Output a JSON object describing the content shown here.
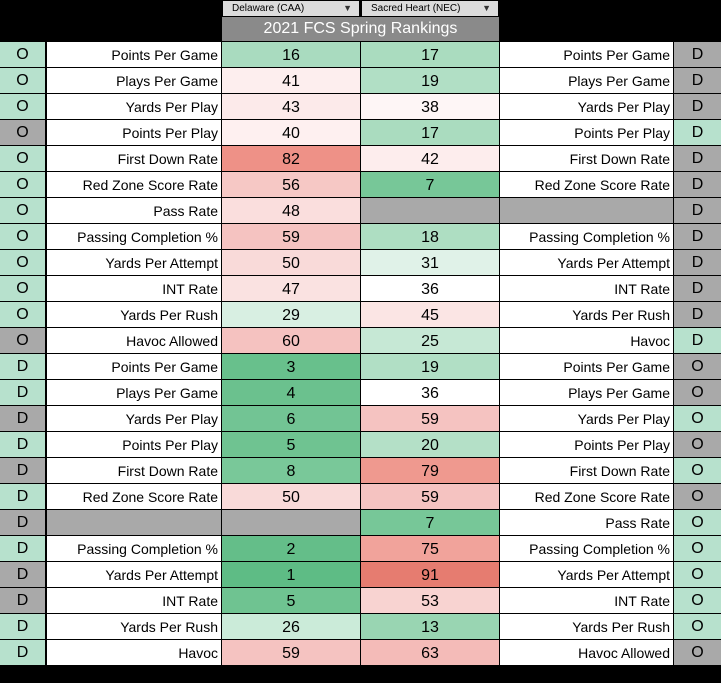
{
  "header": {
    "team1": "Delaware (CAA)",
    "team2": "Sacred Heart (NEC)",
    "title": "2021 FCS Spring Rankings"
  },
  "colors": {
    "side_green": "#b7e1cd",
    "side_gray": "#a9a9a9",
    "blank": "#a9a9a9"
  },
  "rows": [
    {
      "s1": "O",
      "s1c": "g",
      "l1": "Points Per Game",
      "v1": "16",
      "v1c": "#a9dbbf",
      "v2": "17",
      "v2c": "#aadcbf",
      "l2": "Points Per Game",
      "s2": "D",
      "s2c": "x"
    },
    {
      "s1": "O",
      "s1c": "g",
      "l1": "Plays Per Game",
      "v1": "41",
      "v1c": "#fdeeee",
      "v2": "19",
      "v2c": "#b1dfc5",
      "l2": "Plays Per Game",
      "s2": "D",
      "s2c": "x"
    },
    {
      "s1": "O",
      "s1c": "g",
      "l1": "Yards Per Play",
      "v1": "43",
      "v1c": "#fceaea",
      "v2": "38",
      "v2c": "#fef6f6",
      "l2": "Yards Per Play",
      "s2": "D",
      "s2c": "x"
    },
    {
      "s1": "O",
      "s1c": "x",
      "l1": "Points Per Play",
      "v1": "40",
      "v1c": "#fef0f0",
      "v2": "17",
      "v2c": "#aadcbf",
      "l2": "Points Per Play",
      "s2": "D",
      "s2c": "g"
    },
    {
      "s1": "O",
      "s1c": "g",
      "l1": "First Down Rate",
      "v1": "82",
      "v1c": "#ee9187",
      "v2": "42",
      "v2c": "#fdeded",
      "l2": "First Down Rate",
      "s2": "D",
      "s2c": "x"
    },
    {
      "s1": "O",
      "s1c": "g",
      "l1": "Red Zone Score Rate",
      "v1": "56",
      "v1c": "#f6c8c5",
      "v2": "7",
      "v2c": "#77c798",
      "l2": "Red Zone Score Rate",
      "s2": "D",
      "s2c": "x"
    },
    {
      "s1": "O",
      "s1c": "g",
      "l1": "Pass Rate",
      "v1": "48",
      "v1c": "#fadedd",
      "v2": "",
      "v2c": "#a9a9a9",
      "l2": "",
      "l2blank": true,
      "s2": "D",
      "s2c": "x"
    },
    {
      "s1": "O",
      "s1c": "g",
      "l1": "Passing Completion %",
      "v1": "59",
      "v1c": "#f5c3c1",
      "v2": "18",
      "v2c": "#aedec2",
      "l2": "Passing Completion %",
      "s2": "D",
      "s2c": "x"
    },
    {
      "s1": "O",
      "s1c": "g",
      "l1": "Yards Per Attempt",
      "v1": "50",
      "v1c": "#f9dad9",
      "v2": "31",
      "v2c": "#e0f2e8",
      "l2": "Yards Per Attempt",
      "s2": "D",
      "s2c": "x"
    },
    {
      "s1": "O",
      "s1c": "g",
      "l1": "INT Rate",
      "v1": "47",
      "v1c": "#fae2e1",
      "v2": "36",
      "v2c": "#ffffff",
      "l2": "INT Rate",
      "s2": "D",
      "s2c": "x"
    },
    {
      "s1": "O",
      "s1c": "g",
      "l1": "Yards Per Rush",
      "v1": "29",
      "v1c": "#d8efe2",
      "v2": "45",
      "v2c": "#fbe5e4",
      "l2": "Yards Per Rush",
      "s2": "D",
      "s2c": "x"
    },
    {
      "s1": "O",
      "s1c": "x",
      "l1": "Havoc Allowed",
      "v1": "60",
      "v1c": "#f5c2c0",
      "v2": "25",
      "v2c": "#c6e8d5",
      "l2": "Havoc",
      "s2": "D",
      "s2c": "g"
    },
    {
      "s1": "D",
      "s1c": "g",
      "l1": "Points Per Game",
      "v1": "3",
      "v1c": "#68c08c",
      "v2": "19",
      "v2c": "#b1dfc5",
      "l2": "Points Per Game",
      "s2": "O",
      "s2c": "x"
    },
    {
      "s1": "D",
      "s1c": "g",
      "l1": "Plays Per Game",
      "v1": "4",
      "v1c": "#6bc18e",
      "v2": "36",
      "v2c": "#ffffff",
      "l2": "Plays Per Game",
      "s2": "O",
      "s2c": "x"
    },
    {
      "s1": "D",
      "s1c": "x",
      "l1": "Yards Per Play",
      "v1": "6",
      "v1c": "#72c494",
      "v2": "59",
      "v2c": "#f5c3c1",
      "l2": "Yards Per Play",
      "s2": "O",
      "s2c": "g"
    },
    {
      "s1": "D",
      "s1c": "g",
      "l1": "Points Per Play",
      "v1": "5",
      "v1c": "#6fc391",
      "v2": "20",
      "v2c": "#b4e0c7",
      "l2": "Points Per Play",
      "s2": "O",
      "s2c": "x"
    },
    {
      "s1": "D",
      "s1c": "x",
      "l1": "First Down Rate",
      "v1": "8",
      "v1c": "#79c899",
      "v2": "79",
      "v2c": "#ef998f",
      "l2": "First Down Rate",
      "s2": "O",
      "s2c": "g"
    },
    {
      "s1": "D",
      "s1c": "g",
      "l1": "Red Zone Score Rate",
      "v1": "50",
      "v1c": "#f9dad9",
      "v2": "59",
      "v2c": "#f5c3c1",
      "l2": "Red Zone Score Rate",
      "s2": "O",
      "s2c": "x"
    },
    {
      "s1": "D",
      "s1c": "x",
      "l1": "",
      "l1blank": true,
      "v1": "",
      "v1c": "#a9a9a9",
      "v2": "7",
      "v2c": "#77c798",
      "l2": "Pass Rate",
      "s2": "O",
      "s2c": "g"
    },
    {
      "s1": "D",
      "s1c": "g",
      "l1": "Passing Completion %",
      "v1": "2",
      "v1c": "#64be89",
      "v2": "75",
      "v2c": "#f1a39b",
      "l2": "Passing Completion %",
      "s2": "O",
      "s2c": "g"
    },
    {
      "s1": "D",
      "s1c": "x",
      "l1": "Yards Per Attempt",
      "v1": "1",
      "v1c": "#5ebc85",
      "v2": "91",
      "v2c": "#e67c70",
      "l2": "Yards Per Attempt",
      "s2": "O",
      "s2c": "g"
    },
    {
      "s1": "D",
      "s1c": "x",
      "l1": "INT Rate",
      "v1": "5",
      "v1c": "#6fc391",
      "v2": "53",
      "v2c": "#f8d3d1",
      "l2": "INT Rate",
      "s2": "O",
      "s2c": "g"
    },
    {
      "s1": "D",
      "s1c": "g",
      "l1": "Yards Per Rush",
      "v1": "26",
      "v1c": "#cbebd9",
      "v2": "13",
      "v2c": "#99d5b2",
      "l2": "Yards Per Rush",
      "s2": "O",
      "s2c": "g"
    },
    {
      "s1": "D",
      "s1c": "g",
      "l1": "Havoc",
      "v1": "59",
      "v1c": "#f5c3c1",
      "v2": "63",
      "v2c": "#f4bbb8",
      "l2": "Havoc Allowed",
      "s2": "O",
      "s2c": "x"
    }
  ]
}
